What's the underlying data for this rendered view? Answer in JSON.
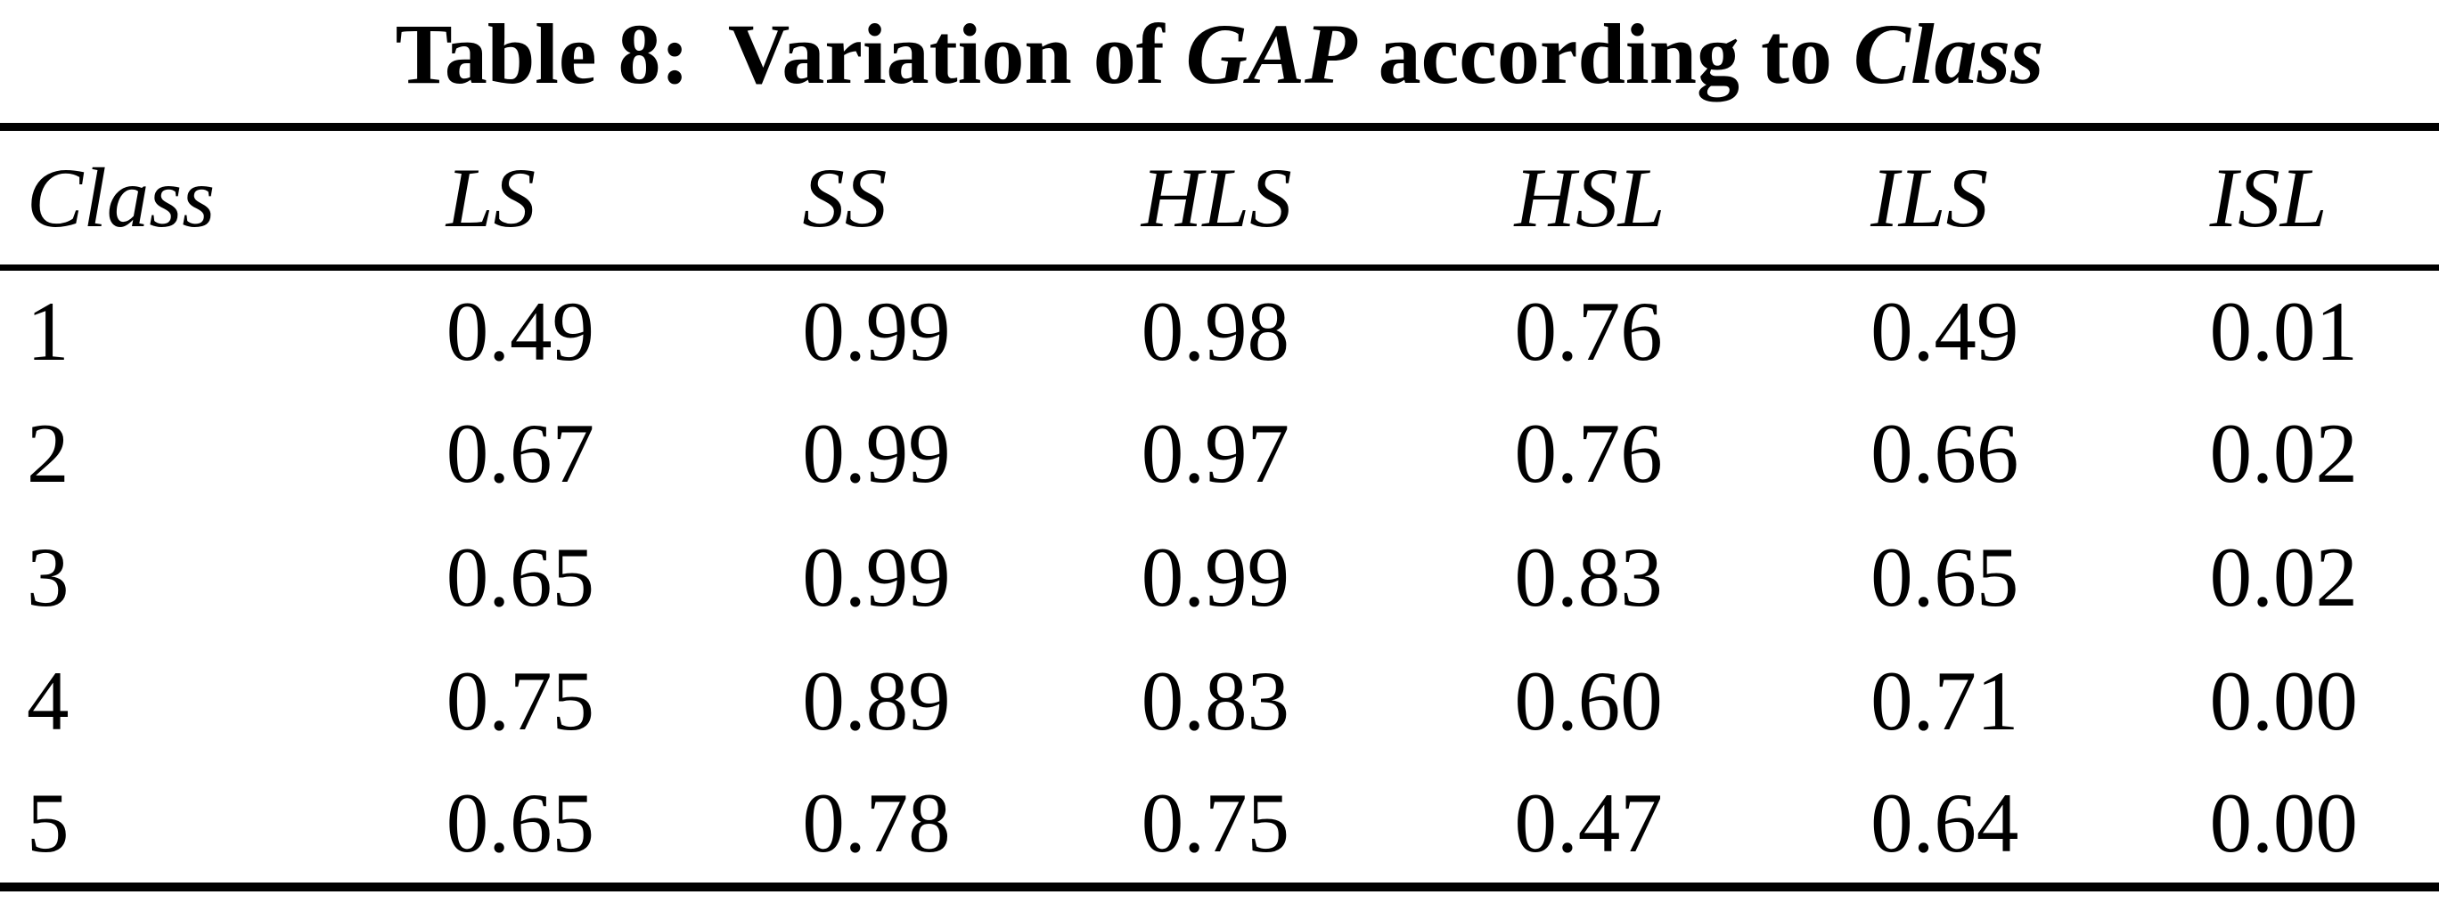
{
  "caption": {
    "label": "Table 8:",
    "pre": " Variation of ",
    "term1": "GAP",
    "mid": " according to ",
    "term2": "Class"
  },
  "table": {
    "columns": [
      "Class",
      "LS",
      "SS",
      "HLS",
      "HSL",
      "ILS",
      "ISL"
    ],
    "rows": [
      [
        "1",
        "0.49",
        "0.99",
        "0.98",
        "0.76",
        "0.49",
        "0.01"
      ],
      [
        "2",
        "0.67",
        "0.99",
        "0.97",
        "0.76",
        "0.66",
        "0.02"
      ],
      [
        "3",
        "0.65",
        "0.99",
        "0.99",
        "0.83",
        "0.65",
        "0.02"
      ],
      [
        "4",
        "0.75",
        "0.89",
        "0.83",
        "0.60",
        "0.71",
        "0.00"
      ],
      [
        "5",
        "0.65",
        "0.78",
        "0.75",
        "0.47",
        "0.64",
        "0.00"
      ]
    ]
  },
  "colors": {
    "text": "#000000",
    "background": "#ffffff",
    "rule": "#000000"
  }
}
